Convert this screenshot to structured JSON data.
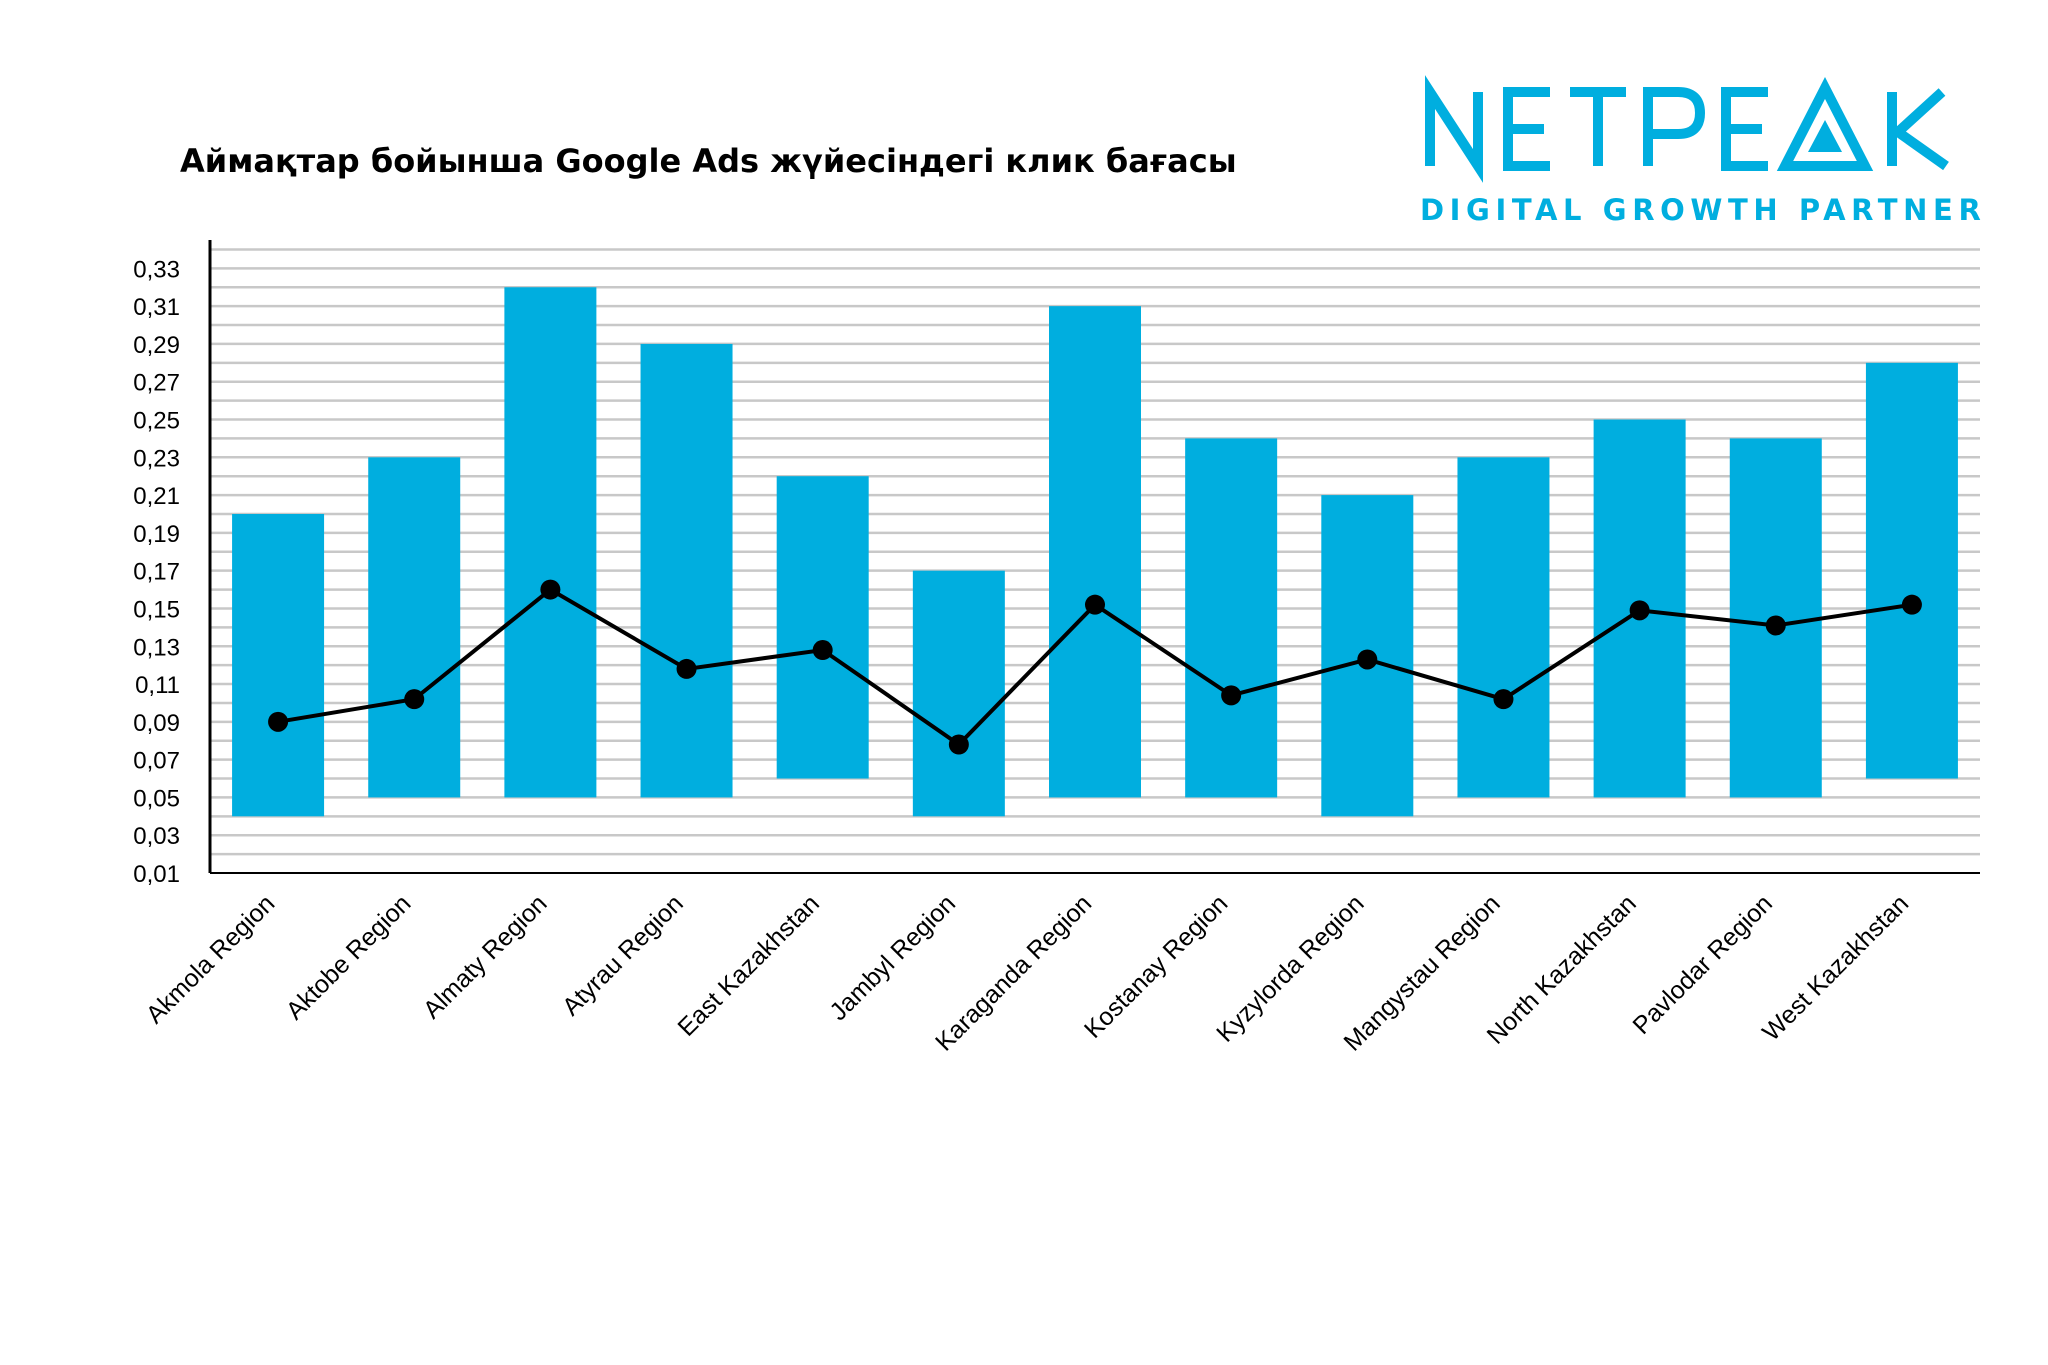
{
  "chart_data": {
    "type": "bar",
    "title": "Аймақтар бойынша Google Ads жүйесіндегі клик бағасы",
    "xlabel": "",
    "ylabel": "",
    "ylim": [
      0.01,
      0.345
    ],
    "yticks": [
      "0,01",
      "0,03",
      "0,05",
      "0,07",
      "0,09",
      "0,11",
      "0,13",
      "0,15",
      "0,17",
      "0,19",
      "0,21",
      "0,23",
      "0,25",
      "0,27",
      "0,29",
      "0,31",
      "0,33"
    ],
    "grid": true,
    "categories": [
      "Akmola Region",
      "Aktobe Region",
      "Almaty Region",
      "Atyrau Region",
      "East Kazakhstan",
      "Jambyl Region",
      "Karaganda Region",
      "Kostanay Region",
      "Kyzylorda Region",
      "Mangystau Region",
      "North Kazakhstan",
      "Pavlodar Region",
      "West Kazakhstan"
    ],
    "bar_ranges": [
      [
        0.04,
        0.2
      ],
      [
        0.05,
        0.23
      ],
      [
        0.05,
        0.32
      ],
      [
        0.05,
        0.29
      ],
      [
        0.06,
        0.22
      ],
      [
        0.04,
        0.17
      ],
      [
        0.05,
        0.31
      ],
      [
        0.05,
        0.24
      ],
      [
        0.04,
        0.21
      ],
      [
        0.05,
        0.23
      ],
      [
        0.05,
        0.25
      ],
      [
        0.05,
        0.24
      ],
      [
        0.06,
        0.28
      ]
    ],
    "line_values": [
      0.09,
      0.102,
      0.16,
      0.118,
      0.128,
      0.078,
      0.152,
      0.104,
      0.123,
      0.102,
      0.149,
      0.141,
      0.152
    ],
    "colors": {
      "bar": "#00AEDF",
      "line": "#000000",
      "grid": "#C8C8C8"
    }
  },
  "logo": {
    "brand": "NETPEAK",
    "tagline": "DIGITAL GROWTH PARTNER",
    "color": "#00AEDF"
  }
}
